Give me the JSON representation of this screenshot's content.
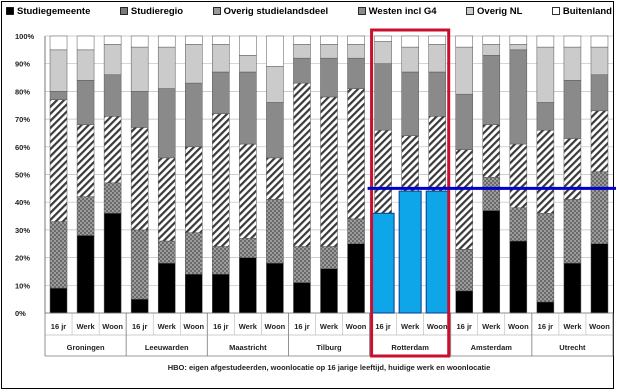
{
  "chart_data": {
    "type": "bar",
    "stacked": true,
    "ylim": [
      0,
      100
    ],
    "y_ticks": [
      "0%",
      "10%",
      "20%",
      "30%",
      "40%",
      "50%",
      "60%",
      "70%",
      "80%",
      "90%",
      "100%"
    ],
    "x_ticks": [
      "16 jr",
      "Werk",
      "Woon"
    ],
    "groups": [
      "Groningen",
      "Leeuwarden",
      "Maastricht",
      "Tilburg",
      "Rotterdam",
      "Amsterdam",
      "Utrecht"
    ],
    "xlabel": "HBO: eigen afgestudeerden, woonlocatie op 16 jarige leeftijd, huidige werk en woonlocatie",
    "legend": [
      {
        "label": "Studiegemeente",
        "pattern": "solid"
      },
      {
        "label": "Studieregio",
        "pattern": "checker"
      },
      {
        "label": "Overig studielandsdeel",
        "pattern": "hatch"
      },
      {
        "label": "Westen incl G4",
        "pattern": "gray"
      },
      {
        "label": "Overig NL",
        "pattern": "lightgray"
      },
      {
        "label": "Buitenland",
        "pattern": "white"
      }
    ],
    "series": [
      {
        "name": "Studiegemeente",
        "values": [
          9,
          28,
          36,
          5,
          18,
          14,
          14,
          20,
          18,
          11,
          16,
          25,
          36,
          44,
          44,
          8,
          37,
          26,
          4,
          18,
          25
        ]
      },
      {
        "name": "Studieregio",
        "values": [
          24,
          14,
          11,
          25,
          8,
          15,
          10,
          7,
          23,
          13,
          8,
          9,
          0,
          0,
          0,
          15,
          12,
          12,
          32,
          23,
          26
        ]
      },
      {
        "name": "Overig studielandsdeel",
        "values": [
          44,
          26,
          24,
          37,
          30,
          31,
          48,
          34,
          15,
          59,
          54,
          47,
          30,
          20,
          27,
          36,
          19,
          23,
          30,
          22,
          22
        ]
      },
      {
        "name": "Westen incl G4",
        "values": [
          3,
          16,
          15,
          13,
          25,
          23,
          15,
          26,
          20,
          9,
          14,
          11,
          24,
          23,
          16,
          20,
          25,
          34,
          10,
          21,
          13
        ]
      },
      {
        "name": "Overig NL",
        "values": [
          15,
          11,
          11,
          16,
          15,
          14,
          10,
          6,
          13,
          5,
          5,
          5,
          8,
          9,
          10,
          17,
          4,
          2,
          20,
          12,
          10
        ]
      },
      {
        "name": "Buitenland",
        "values": [
          5,
          5,
          3,
          4,
          4,
          3,
          3,
          7,
          11,
          3,
          3,
          3,
          2,
          4,
          3,
          4,
          3,
          3,
          4,
          4,
          4
        ]
      }
    ],
    "annotations": {
      "highlight_group": "Rotterdam",
      "highlight_line_value": 45,
      "overlay_bar_values": [
        36,
        44,
        44
      ],
      "colors": {
        "highlight_box": "#c8102e",
        "line": "#0000cc",
        "overlay_bar": "#0ea5e9"
      }
    }
  }
}
